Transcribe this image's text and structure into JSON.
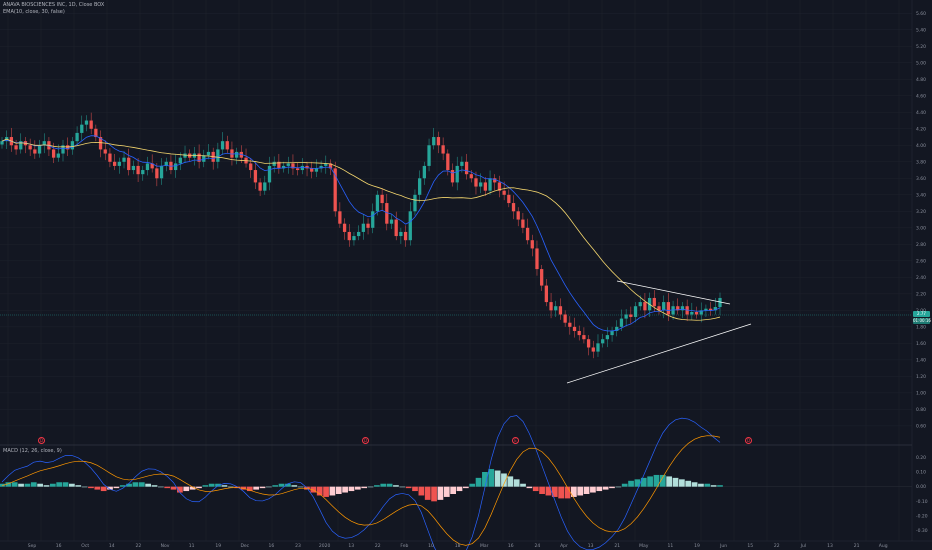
{
  "legend": {
    "title": "ANAVA BIOSCIENCES INC, 1D, Close BOX",
    "ema_label": "EMA(10, close, 30, false)",
    "macd_label": "MACD (12, 26, close, 9)"
  },
  "colors": {
    "background": "#131722",
    "up": "#26a69a",
    "down": "#ef5350",
    "fast_ma": "#2962ff",
    "slow_ma": "#f5d76e",
    "trendline": "#ffffff",
    "hist_up": "#26a69a",
    "hist_up_light": "#b2dfdb",
    "hist_down": "#ef5350",
    "hist_down_light": "#ffcdd2",
    "macd_line": "#2962ff",
    "signal_line": "#ff9800"
  },
  "price_badges": [
    {
      "label": "2.77",
      "color": "#26a69a"
    },
    {
      "label": "01:00:16",
      "color": "#26a69a"
    }
  ],
  "event_markers": [
    "D",
    "D",
    "E",
    "D"
  ],
  "chart_data": [
    {
      "type": "candlestick",
      "title": "ANAVA BIOSCIENCES INC, 1D, Close BOX",
      "price_axis_ticks": [
        "5.60",
        "5.40",
        "5.20",
        "5.00",
        "4.80",
        "4.60",
        "4.40",
        "4.20",
        "4.00",
        "3.80",
        "3.60",
        "3.40",
        "3.20",
        "3.00",
        "2.80",
        "2.60",
        "2.40",
        "2.20",
        "2.00",
        "1.80",
        "1.60",
        "1.40",
        "1.20",
        "1.00",
        "0.80",
        "0.60"
      ],
      "ylim": [
        0.55,
        5.7
      ],
      "time_axis_ticks": [
        "Sep",
        "16",
        "Oct",
        "14",
        "22",
        "Nov",
        "11",
        "19",
        "Dec",
        "16",
        "23",
        "2020",
        "13",
        "22",
        "Feb",
        "10",
        "18",
        "Mar",
        "16",
        "24",
        "Apr",
        "13",
        "21",
        "May",
        "11",
        "19",
        "Jun",
        "15",
        "22",
        "Jul",
        "13",
        "21",
        "Aug"
      ],
      "closes": [
        4.05,
        4.1,
        4.0,
        3.95,
        4.05,
        4.0,
        3.95,
        3.9,
        4.0,
        4.05,
        3.95,
        3.85,
        3.9,
        4.0,
        3.95,
        4.05,
        4.15,
        4.25,
        4.3,
        4.2,
        4.1,
        3.95,
        3.9,
        3.8,
        3.75,
        3.8,
        3.85,
        3.7,
        3.75,
        3.65,
        3.7,
        3.78,
        3.72,
        3.6,
        3.75,
        3.8,
        3.7,
        3.78,
        3.85,
        3.9,
        3.85,
        3.9,
        3.8,
        3.88,
        3.92,
        3.8,
        3.95,
        4.05,
        3.95,
        3.85,
        3.92,
        3.85,
        3.78,
        3.7,
        3.55,
        3.45,
        3.55,
        3.75,
        3.8,
        3.72,
        3.75,
        3.78,
        3.72,
        3.7,
        3.75,
        3.72,
        3.68,
        3.72,
        3.75,
        3.78,
        3.72,
        3.2,
        3.05,
        2.95,
        2.85,
        2.9,
        2.95,
        3.05,
        3.0,
        3.2,
        3.4,
        3.3,
        3.05,
        3.1,
        2.9,
        2.95,
        2.85,
        3.2,
        3.4,
        3.6,
        3.75,
        4.0,
        4.1,
        4.0,
        3.9,
        3.7,
        3.55,
        3.75,
        3.8,
        3.65,
        3.6,
        3.5,
        3.55,
        3.45,
        3.6,
        3.55,
        3.45,
        3.4,
        3.3,
        3.2,
        3.1,
        3.0,
        2.85,
        2.75,
        2.5,
        2.3,
        2.1,
        2.0,
        2.05,
        1.95,
        1.85,
        1.8,
        1.75,
        1.7,
        1.65,
        1.55,
        1.5,
        1.6,
        1.65,
        1.7,
        1.75,
        1.8,
        1.9,
        1.95,
        1.92,
        2.05,
        2.1,
        2.0,
        2.15,
        2.05,
        2.0,
        2.1,
        1.95,
        2.05,
        2.0,
        2.05,
        1.95,
        1.98,
        1.95,
        2.0,
        2.02,
        2.0,
        2.04,
        2.15
      ]
    },
    {
      "type": "histogram",
      "title": "MACD (12, 26, close, 9)",
      "macd_axis_ticks": [
        "0.20",
        "0.10",
        "0.00",
        "-0.10",
        "-0.20",
        "-0.30"
      ],
      "ylim": [
        -0.35,
        0.25
      ],
      "histogram": [
        0.02,
        0.03,
        0.03,
        0.02,
        0.02,
        0.03,
        0.02,
        0.01,
        0.02,
        0.03,
        0.03,
        0.02,
        0.01,
        0.0,
        -0.01,
        -0.02,
        -0.03,
        -0.02,
        -0.01,
        0.01,
        0.02,
        0.03,
        0.03,
        0.02,
        0.01,
        0.0,
        -0.01,
        -0.02,
        -0.04,
        -0.03,
        -0.02,
        -0.01,
        0.01,
        0.02,
        0.02,
        0.01,
        0.0,
        -0.01,
        -0.02,
        -0.03,
        -0.02,
        -0.01,
        0.0,
        0.01,
        0.02,
        0.02,
        0.01,
        0.0,
        -0.02,
        -0.04,
        -0.06,
        -0.07,
        -0.06,
        -0.05,
        -0.04,
        -0.03,
        -0.02,
        -0.01,
        0.0,
        0.01,
        0.02,
        0.02,
        0.01,
        0.0,
        -0.01,
        -0.03,
        -0.06,
        -0.09,
        -0.1,
        -0.09,
        -0.07,
        -0.05,
        -0.03,
        -0.01,
        0.02,
        0.06,
        0.1,
        0.12,
        0.11,
        0.09,
        0.07,
        0.05,
        0.02,
        -0.01,
        -0.03,
        -0.05,
        -0.06,
        -0.07,
        -0.08,
        -0.08,
        -0.07,
        -0.06,
        -0.05,
        -0.04,
        -0.03,
        -0.02,
        -0.01,
        0.0,
        0.02,
        0.04,
        0.05,
        0.06,
        0.07,
        0.08,
        0.08,
        0.07,
        0.06,
        0.05,
        0.04,
        0.03,
        0.02,
        0.02,
        0.01,
        0.01
      ]
    }
  ]
}
